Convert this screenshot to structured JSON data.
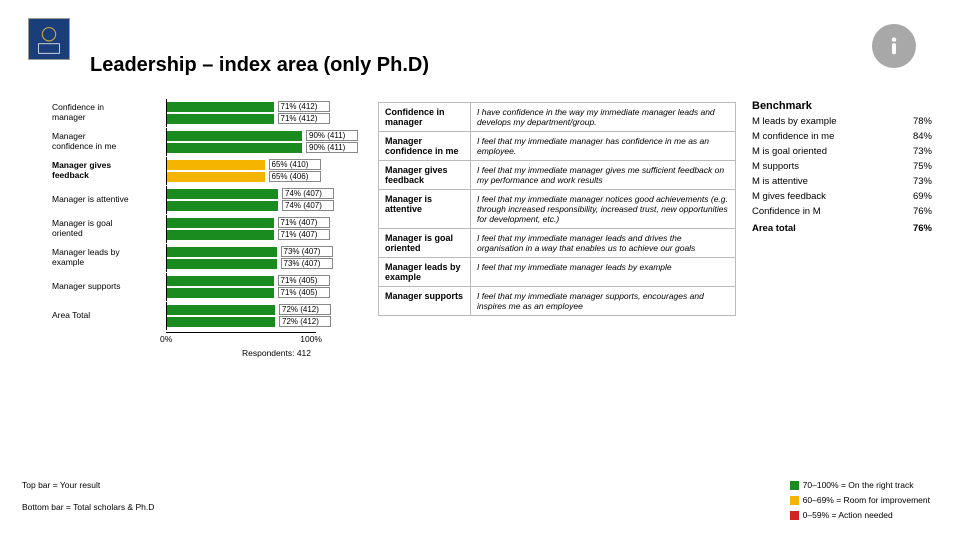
{
  "title": "Leadership – index area (only Ph.D)",
  "colors": {
    "green": "#1a8b1e",
    "yellow": "#f4b400",
    "red": "#d62222",
    "logo_bg": "#1a3e7a",
    "badge_bg": "#a8a8a8"
  },
  "chart": {
    "axis_min_label": "0%",
    "axis_max_label": "100%",
    "respondents_label": "Respondents: 412",
    "rows": [
      {
        "label": "Confidence in\nmanager",
        "top_pct": 71,
        "top_text": "71% (412)",
        "top_band": "green",
        "bot_pct": 71,
        "bot_text": "71% (412)",
        "bot_band": "green"
      },
      {
        "label": "Manager\nconfidence in me",
        "top_pct": 90,
        "top_text": "90% (411)",
        "top_band": "green",
        "bot_pct": 90,
        "bot_text": "90% (411)",
        "bot_band": "green"
      },
      {
        "label": "Manager gives\nfeedback",
        "bold": true,
        "top_pct": 65,
        "top_text": "65% (410)",
        "top_band": "yellow",
        "bot_pct": 65,
        "bot_text": "65% (406)",
        "bot_band": "yellow"
      },
      {
        "label": "Manager is attentive",
        "top_pct": 74,
        "top_text": "74% (407)",
        "top_band": "green",
        "bot_pct": 74,
        "bot_text": "74% (407)",
        "bot_band": "green"
      },
      {
        "label": "Manager is goal\noriented",
        "top_pct": 71,
        "top_text": "71% (407)",
        "top_band": "green",
        "bot_pct": 71,
        "bot_text": "71% (407)",
        "bot_band": "green"
      },
      {
        "label": "Manager leads by\nexample",
        "top_pct": 73,
        "top_text": "73% (407)",
        "top_band": "green",
        "bot_pct": 73,
        "bot_text": "73% (407)",
        "bot_band": "green"
      },
      {
        "label": "Manager supports",
        "top_pct": 71,
        "top_text": "71% (405)",
        "top_band": "green",
        "bot_pct": 71,
        "bot_text": "71% (405)",
        "bot_band": "green"
      },
      {
        "label": "Area Total",
        "top_pct": 72,
        "top_text": "72% (412)",
        "top_band": "green",
        "bot_pct": 72,
        "bot_text": "72% (412)",
        "bot_band": "green"
      }
    ]
  },
  "definitions": [
    {
      "term": "Confidence in manager",
      "desc": "I have confidence in the way my immediate manager leads and develops my department/group."
    },
    {
      "term": "Manager confidence in me",
      "desc": "I feel that my immediate manager has confidence in me as an employee."
    },
    {
      "term": "Manager gives feedback",
      "desc": "I feel that my immediate manager gives me sufficient feedback on my performance and work results"
    },
    {
      "term": "Manager is attentive",
      "desc": "I feel that my immediate manager notices good achievements (e.g. through increased responsibility, increased trust, new opportunities for development, etc.)"
    },
    {
      "term": "Manager is goal oriented",
      "desc": "I feel that my immediate manager leads and drives the organisation in a way that enables us to achieve our goals"
    },
    {
      "term": "Manager leads by example",
      "desc": "I feel that my immediate manager leads by example"
    },
    {
      "term": "Manager supports",
      "desc": "I feel that my immediate manager supports, encourages and inspires me as an employee"
    }
  ],
  "benchmark": {
    "title": "Benchmark",
    "rows": [
      {
        "label": "M leads by example",
        "value": "78%"
      },
      {
        "label": "M confidence in me",
        "value": "84%"
      },
      {
        "label": "M is goal oriented",
        "value": "73%"
      },
      {
        "label": "M supports",
        "value": "75%"
      },
      {
        "label": "M is attentive",
        "value": "73%"
      },
      {
        "label": "M gives feedback",
        "value": "69%"
      },
      {
        "label": "Confidence in M",
        "value": "76%"
      }
    ],
    "total": {
      "label": "Area total",
      "value": "76%"
    }
  },
  "footnotes": {
    "top_bar": "Top bar = Your result",
    "bottom_bar": "Bottom bar = Total scholars & Ph.D"
  },
  "legend": [
    {
      "color_key": "green",
      "text": "70–100% = On the right track"
    },
    {
      "color_key": "yellow",
      "text": "60–69% = Room for improvement"
    },
    {
      "color_key": "red",
      "text": "0–59% = Action needed"
    }
  ]
}
